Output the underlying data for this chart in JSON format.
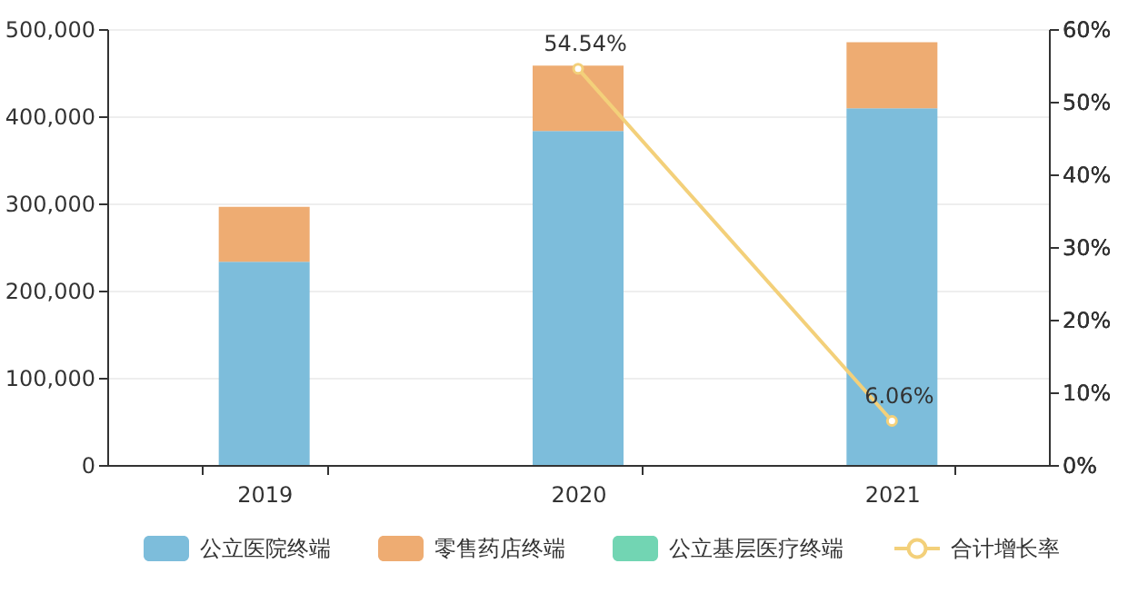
{
  "chart_data": {
    "type": "bar",
    "stacked": true,
    "categories": [
      "2019",
      "2020",
      "2021"
    ],
    "series": [
      {
        "name": "公立医院终端",
        "color": "#7dbddb",
        "values": [
          233000,
          383000,
          409000
        ]
      },
      {
        "name": "零售药店终端",
        "color": "#eeac72",
        "values": [
          63000,
          75000,
          76000
        ]
      },
      {
        "name": "公立基层医疗终端",
        "color": "#72d5b3",
        "values": [
          0,
          0,
          0
        ]
      },
      {
        "name": "合计增长率",
        "type": "line",
        "axis": "y2",
        "color": "#f3d07a",
        "marker": "circle",
        "values": [
          null,
          54.54,
          6.06
        ],
        "value_labels": [
          null,
          "54.54%",
          "6.06%"
        ]
      }
    ],
    "ylim": [
      0,
      500000
    ],
    "yticks": [
      0,
      {
        "value": 100000,
        "label": "100,000"
      },
      {
        "value": 200000,
        "label": "200,000"
      },
      {
        "value": 300000,
        "label": "300,000"
      },
      {
        "value": 400000,
        "label": "400,000"
      },
      {
        "value": 500000,
        "label": "500,000"
      }
    ],
    "y2lim": [
      0,
      60
    ],
    "y2ticks": [
      {
        "value": 0,
        "label": "0%"
      },
      {
        "value": 10,
        "label": "10%"
      },
      {
        "value": 20,
        "label": "20%"
      },
      {
        "value": 30,
        "label": "30%"
      },
      {
        "value": 40,
        "label": "40%"
      },
      {
        "value": 50,
        "label": "50%"
      },
      {
        "value": 60,
        "label": "60%"
      }
    ],
    "grid": "y",
    "legend": "bottom"
  }
}
